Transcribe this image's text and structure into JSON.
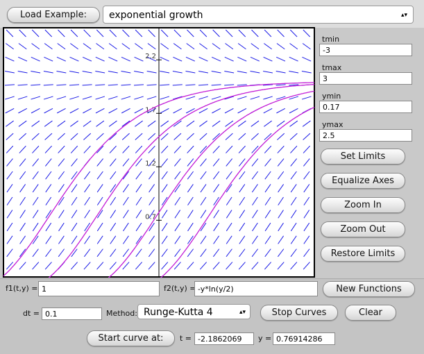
{
  "toolbar": {
    "load_button": "Load Example:",
    "example": "exponential growth"
  },
  "limits": {
    "tmin_label": "tmin",
    "tmin": "-3",
    "tmax_label": "tmax",
    "tmax": "3",
    "ymin_label": "ymin",
    "ymin": "0.17",
    "ymax_label": "ymax",
    "ymax": "2.5"
  },
  "side_buttons": [
    "Set Limits",
    "Equalize Axes",
    "Zoom In",
    "Zoom Out",
    "Restore Limits"
  ],
  "plot": {
    "yticks": [
      "2.2",
      "1.7",
      "1.2",
      "0.7"
    ]
  },
  "functions": {
    "f1_label": "f1(t,y) =",
    "f1": "1",
    "f2_label": "f2(t,y) =",
    "f2": "-y*ln(y/2)",
    "new_button": "New Functions"
  },
  "solver": {
    "dt_label": "dt =",
    "dt": "0.1",
    "method_label": "Method:",
    "method": "Runge-Kutta 4",
    "stop_button": "Stop Curves",
    "clear_button": "Clear"
  },
  "start": {
    "button": "Start curve at:",
    "t_label": "t =",
    "t": "-2.1862069",
    "y_label": "y =",
    "y": "0.76914286"
  }
}
